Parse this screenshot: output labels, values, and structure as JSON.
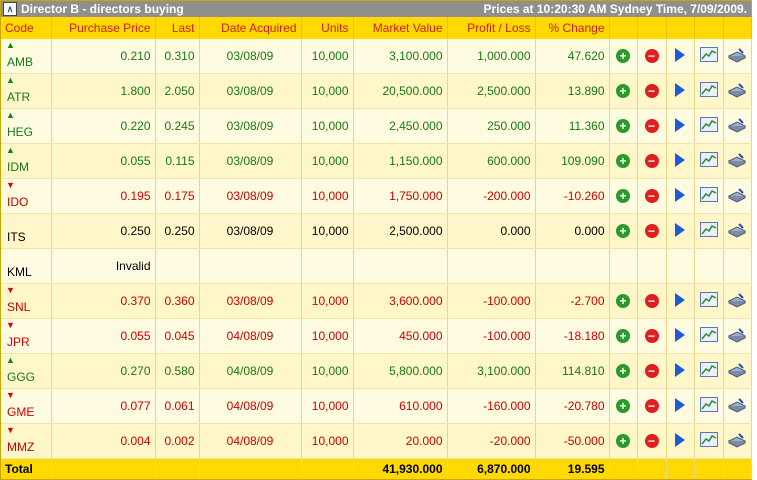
{
  "panel": {
    "collapse_glyph": "∧",
    "title": "Director B - directors buying",
    "prices_at": "Prices at 10:20:30 AM Sydney Time, 7/09/2009."
  },
  "columns": [
    "Code",
    "Purchase Price",
    "Last",
    "Date Acquired",
    "Units",
    "Market Value",
    "Profit / Loss",
    "% Change"
  ],
  "rows": [
    {
      "code": "AMB",
      "dir": "up",
      "color": "g",
      "purchase": "0.210",
      "last": "0.310",
      "date": "03/08/09",
      "units": "10,000",
      "market": "3,100.000",
      "pl": "1,000.000",
      "pct": "47.620"
    },
    {
      "code": "ATR",
      "dir": "up",
      "color": "g",
      "purchase": "1.800",
      "last": "2.050",
      "date": "03/08/09",
      "units": "10,000",
      "market": "20,500.000",
      "pl": "2,500.000",
      "pct": "13.890"
    },
    {
      "code": "HEG",
      "dir": "up",
      "color": "g",
      "purchase": "0.220",
      "last": "0.245",
      "date": "03/08/09",
      "units": "10,000",
      "market": "2,450.000",
      "pl": "250.000",
      "pct": "11.360"
    },
    {
      "code": "IDM",
      "dir": "up",
      "color": "g",
      "purchase": "0.055",
      "last": "0.115",
      "date": "03/08/09",
      "units": "10,000",
      "market": "1,150.000",
      "pl": "600.000",
      "pct": "109.090"
    },
    {
      "code": "IDO",
      "dir": "down",
      "color": "r",
      "purchase": "0.195",
      "last": "0.175",
      "date": "03/08/09",
      "units": "10,000",
      "market": "1,750.000",
      "pl": "-200.000",
      "pct": "-10.260"
    },
    {
      "code": "ITS",
      "dir": "none",
      "color": "k",
      "purchase": "0.250",
      "last": "0.250",
      "date": "03/08/09",
      "units": "10,000",
      "market": "2,500.000",
      "pl": "0.000",
      "pct": "0.000"
    },
    {
      "code": "KML",
      "dir": "none",
      "color": "k",
      "purchase": "Invalid",
      "last": "",
      "date": "",
      "units": "",
      "market": "",
      "pl": "",
      "pct": ""
    },
    {
      "code": "SNL",
      "dir": "down",
      "color": "r",
      "purchase": "0.370",
      "last": "0.360",
      "date": "03/08/09",
      "units": "10,000",
      "market": "3,600.000",
      "pl": "-100.000",
      "pct": "-2.700"
    },
    {
      "code": "JPR",
      "dir": "down",
      "color": "r",
      "purchase": "0.055",
      "last": "0.045",
      "date": "04/08/09",
      "units": "10,000",
      "market": "450.000",
      "pl": "-100.000",
      "pct": "-18.180"
    },
    {
      "code": "GGG",
      "dir": "up",
      "color": "g",
      "purchase": "0.270",
      "last": "0.580",
      "date": "04/08/09",
      "units": "10,000",
      "market": "5,800.000",
      "pl": "3,100.000",
      "pct": "114.810"
    },
    {
      "code": "GME",
      "dir": "down",
      "color": "r",
      "purchase": "0.077",
      "last": "0.061",
      "date": "04/08/09",
      "units": "10,000",
      "market": "610.000",
      "pl": "-160.000",
      "pct": "-20.780"
    },
    {
      "code": "MMZ",
      "dir": "down",
      "color": "r",
      "purchase": "0.004",
      "last": "0.002",
      "date": "04/08/09",
      "units": "10,000",
      "market": "20.000",
      "pl": "-20.000",
      "pct": "-50.000"
    }
  ],
  "total": {
    "label": "Total",
    "market": "41,930.000",
    "pl": "6,870.000",
    "pct": "19.595"
  },
  "icons": [
    "add-icon",
    "remove-icon",
    "play-icon",
    "chart-icon",
    "tool-icon"
  ]
}
